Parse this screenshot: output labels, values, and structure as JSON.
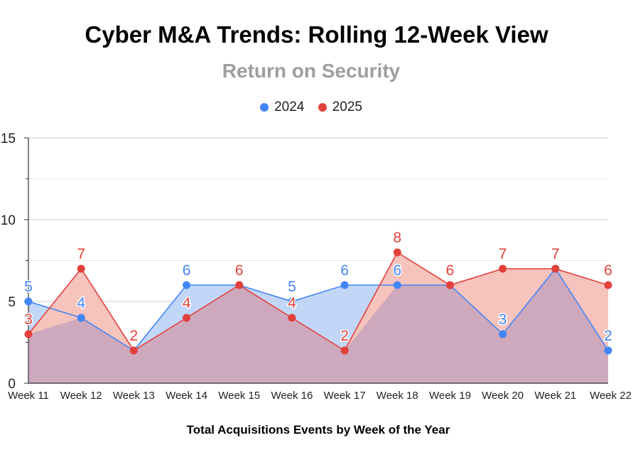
{
  "chart_data": {
    "type": "area",
    "title": "Cyber M&A Trends: Rolling 12-Week View",
    "subtitle": "Return on Security",
    "xlabel": "Total Acquisitions Events by Week of the Year",
    "ylabel": "",
    "ylim": [
      0,
      15
    ],
    "y_ticks": [
      "0",
      "5",
      "10",
      "15"
    ],
    "grid": true,
    "legend_position": "top",
    "categories": [
      "Week 11",
      "Week 12",
      "Week 13",
      "Week 14",
      "Week 15",
      "Week 16",
      "Week 17",
      "Week 18",
      "Week 19",
      "Week 20",
      "Week 21",
      "Week 22"
    ],
    "series": [
      {
        "name": "2024",
        "color": "#4285f4",
        "fill": "#c2d7f8",
        "values": [
          5,
          4,
          2,
          6,
          6,
          5,
          6,
          6,
          6,
          3,
          7,
          2
        ]
      },
      {
        "name": "2025",
        "color": "#e2403a",
        "fill": "#f6c3bd",
        "values": [
          3,
          7,
          2,
          4,
          6,
          4,
          2,
          8,
          6,
          7,
          7,
          6
        ]
      }
    ],
    "overlap_fill": "#cea9bd"
  }
}
